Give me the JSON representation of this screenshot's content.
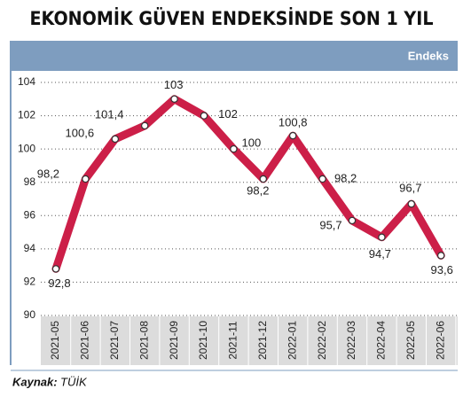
{
  "chart_data": {
    "type": "line",
    "title": "EKONOMİK GÜVEN ENDEKSİNDE SON 1 YIL",
    "y_label": "Endeks",
    "categories": [
      "2021-05",
      "2021-06",
      "2021-07",
      "2021-08",
      "2021-09",
      "2021-10",
      "2021-11",
      "2021-12",
      "2022-01",
      "2022-02",
      "2022-03",
      "2022-04",
      "2022-05",
      "2022-06"
    ],
    "series": [
      {
        "name": "Endeks",
        "color": "#cc1f48",
        "values": [
          92.8,
          98.2,
          100.6,
          101.4,
          103,
          102,
          100,
          98.2,
          100.8,
          98.2,
          95.7,
          94.7,
          96.7,
          93.6
        ],
        "value_labels": [
          "92,8",
          "98,2",
          "100,6",
          "101,4",
          "103",
          "102",
          "100",
          "98,2",
          "100,8",
          "98,2",
          "95,7",
          "94,7",
          "96,7",
          "93,6"
        ]
      }
    ],
    "ylim": [
      90,
      104
    ],
    "yticks": [
      90,
      92,
      94,
      96,
      98,
      100,
      102,
      104
    ],
    "grid": true,
    "source_label": "Kaynak:",
    "source": "TÜİK"
  }
}
